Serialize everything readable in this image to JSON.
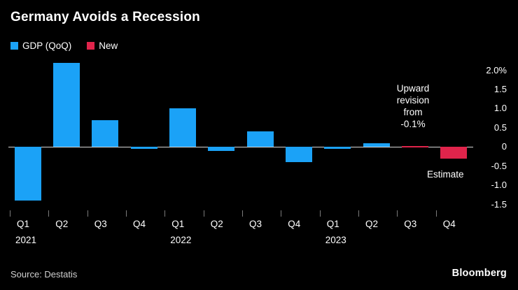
{
  "title": "Germany Avoids a Recession",
  "legend": {
    "items": [
      {
        "label": "GDP (QoQ)",
        "color": "#1ba2f7"
      },
      {
        "label": "New",
        "color": "#e0244b"
      }
    ]
  },
  "chart_data": {
    "type": "bar",
    "title": "Germany Avoids a Recession",
    "categories": [
      "Q1",
      "Q2",
      "Q3",
      "Q4",
      "Q1",
      "Q2",
      "Q3",
      "Q4",
      "Q1",
      "Q2",
      "Q3",
      "Q4"
    ],
    "year_labels": [
      {
        "index": 0,
        "label": "2021"
      },
      {
        "index": 4,
        "label": "2022"
      },
      {
        "index": 8,
        "label": "2023"
      }
    ],
    "series": [
      {
        "name": "GDP (QoQ)",
        "color": "#1ba2f7",
        "values": [
          -1.4,
          2.2,
          0.7,
          -0.05,
          1.0,
          -0.1,
          0.4,
          -0.4,
          -0.05,
          0.1,
          null,
          null
        ]
      },
      {
        "name": "New",
        "color": "#e0244b",
        "values": [
          null,
          null,
          null,
          null,
          null,
          null,
          null,
          null,
          null,
          null,
          0.03,
          -0.3
        ]
      }
    ],
    "ylim": [
      -1.6,
      2.3
    ],
    "yticks": [
      {
        "value": 2.0,
        "label": "2.0%"
      },
      {
        "value": 1.5,
        "label": "1.5"
      },
      {
        "value": 1.0,
        "label": "1.0"
      },
      {
        "value": 0.5,
        "label": "0.5"
      },
      {
        "value": 0,
        "label": "0"
      },
      {
        "value": -0.5,
        "label": "-0.5"
      },
      {
        "value": -1.0,
        "label": "-1.0"
      },
      {
        "value": -1.5,
        "label": "-1.5"
      }
    ],
    "grid": "zero-line-only",
    "legend_position": "top-left",
    "annotations": {
      "upward_revision": "Upward revision from -0.1%",
      "estimate": "Estimate"
    }
  },
  "footer": {
    "source": "Source: Destatis",
    "brand": "Bloomberg"
  }
}
